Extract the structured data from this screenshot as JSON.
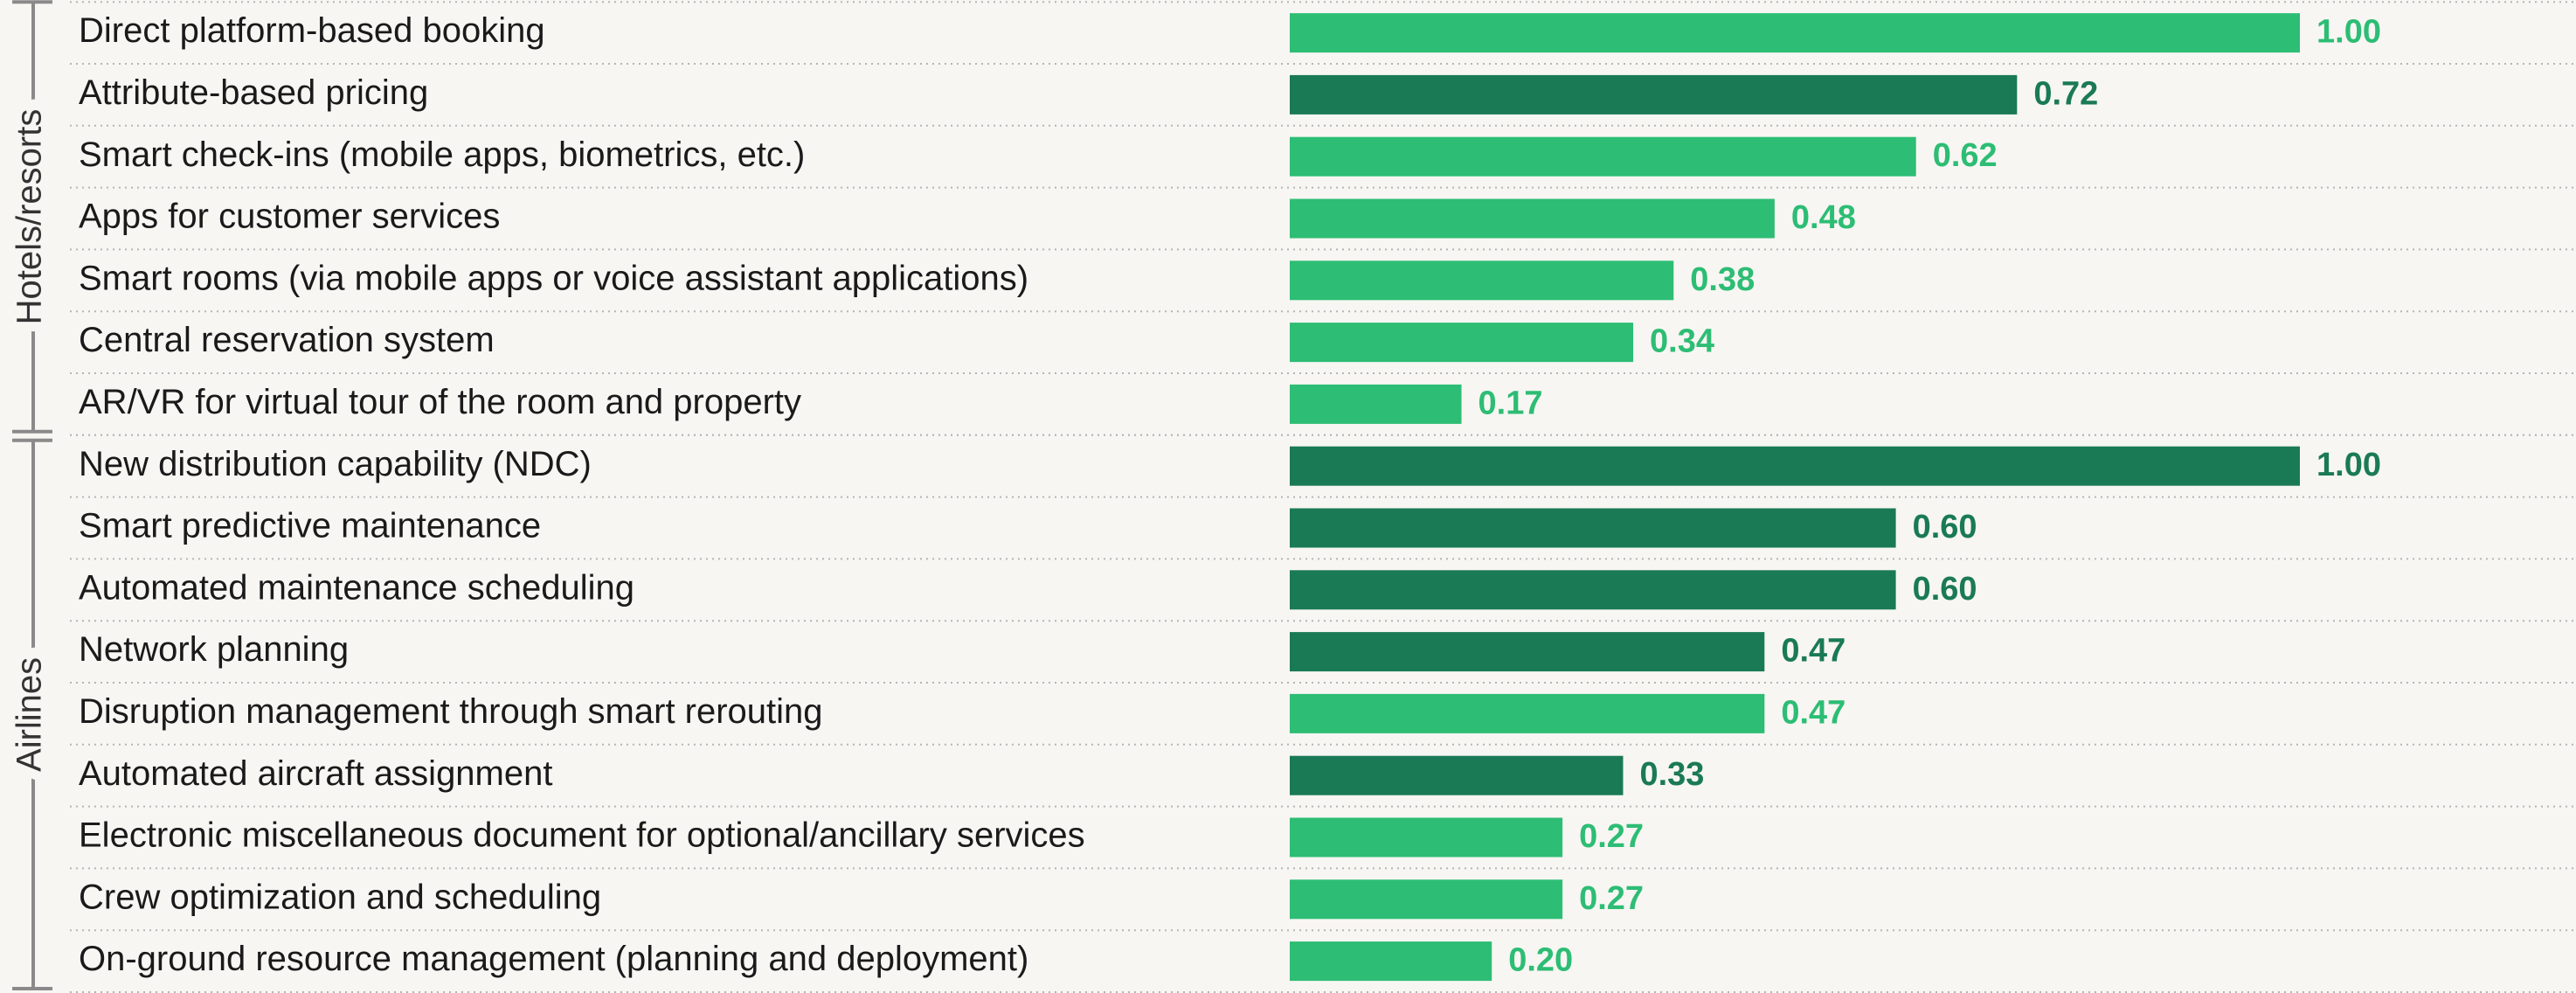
{
  "chart_data": {
    "type": "bar",
    "orientation": "horizontal",
    "groups": [
      {
        "name": "Hotels/resorts",
        "categories": [
          "Direct platform-based booking",
          "Attribute-based pricing",
          "Smart check-ins (mobile apps, biometrics, etc.)",
          "Apps for customer services",
          "Smart rooms (via mobile apps or voice assistant applications)",
          "Central reservation system",
          "AR/VR for virtual tour of the room and property"
        ],
        "values": [
          1,
          0.72,
          0.62,
          0.48,
          0.38,
          0.34,
          0.17
        ],
        "value_labels": [
          "1.00",
          "0.72",
          "0.62",
          "0.48",
          "0.38",
          "0.34",
          "0.17"
        ],
        "colors": [
          "#2dbd74",
          "#1a7a55",
          "#2dbd74",
          "#2dbd74",
          "#2dbd74",
          "#2dbd74",
          "#2dbd74"
        ]
      },
      {
        "name": "Airlines",
        "categories": [
          "New distribution capability (NDC)",
          "Smart predictive maintenance",
          "Automated maintenance scheduling",
          "Network planning",
          "Disruption management through smart rerouting",
          "Automated aircraft assignment",
          "Electronic miscellaneous document for optional/ancillary services",
          "Crew optimization and scheduling",
          "On-ground resource management (planning and deployment)"
        ],
        "values": [
          1,
          0.6,
          0.6,
          0.47,
          0.47,
          0.33,
          0.27,
          0.27,
          0.2
        ],
        "value_labels": [
          "1.00",
          "0.60",
          "0.60",
          "0.47",
          "0.47",
          "0.33",
          "0.27",
          "0.27",
          "0.20"
        ],
        "colors": [
          "#1a7a55",
          "#1a7a55",
          "#1a7a55",
          "#1a7a55",
          "#2dbd74",
          "#1a7a55",
          "#2dbd74",
          "#2dbd74",
          "#2dbd74"
        ]
      }
    ]
  }
}
